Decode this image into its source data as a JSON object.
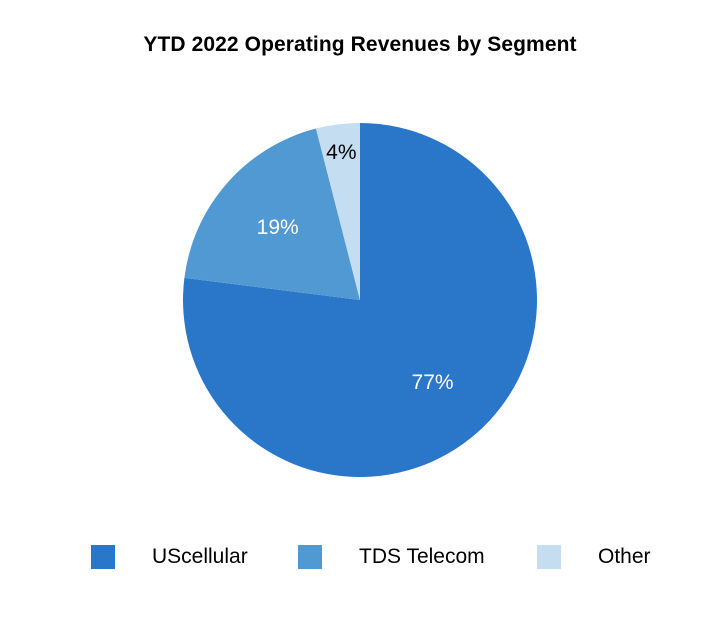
{
  "chart_data": {
    "type": "pie",
    "title": "YTD 2022 Operating Revenues by Segment",
    "categories": [
      "UScellular",
      "TDS Telecom",
      "Other"
    ],
    "values": [
      77,
      19,
      4
    ],
    "value_labels": [
      "77%",
      "19%",
      "4%"
    ],
    "colors": [
      "#2a77c9",
      "#5199d3",
      "#c4ddf1"
    ],
    "label_colors": [
      "#ffffff",
      "#ffffff",
      "#000000"
    ],
    "start_angle_deg": 0,
    "direction": "clockwise",
    "legend": {
      "position": "bottom",
      "items": [
        "UScellular",
        "TDS Telecom",
        "Other"
      ]
    }
  }
}
